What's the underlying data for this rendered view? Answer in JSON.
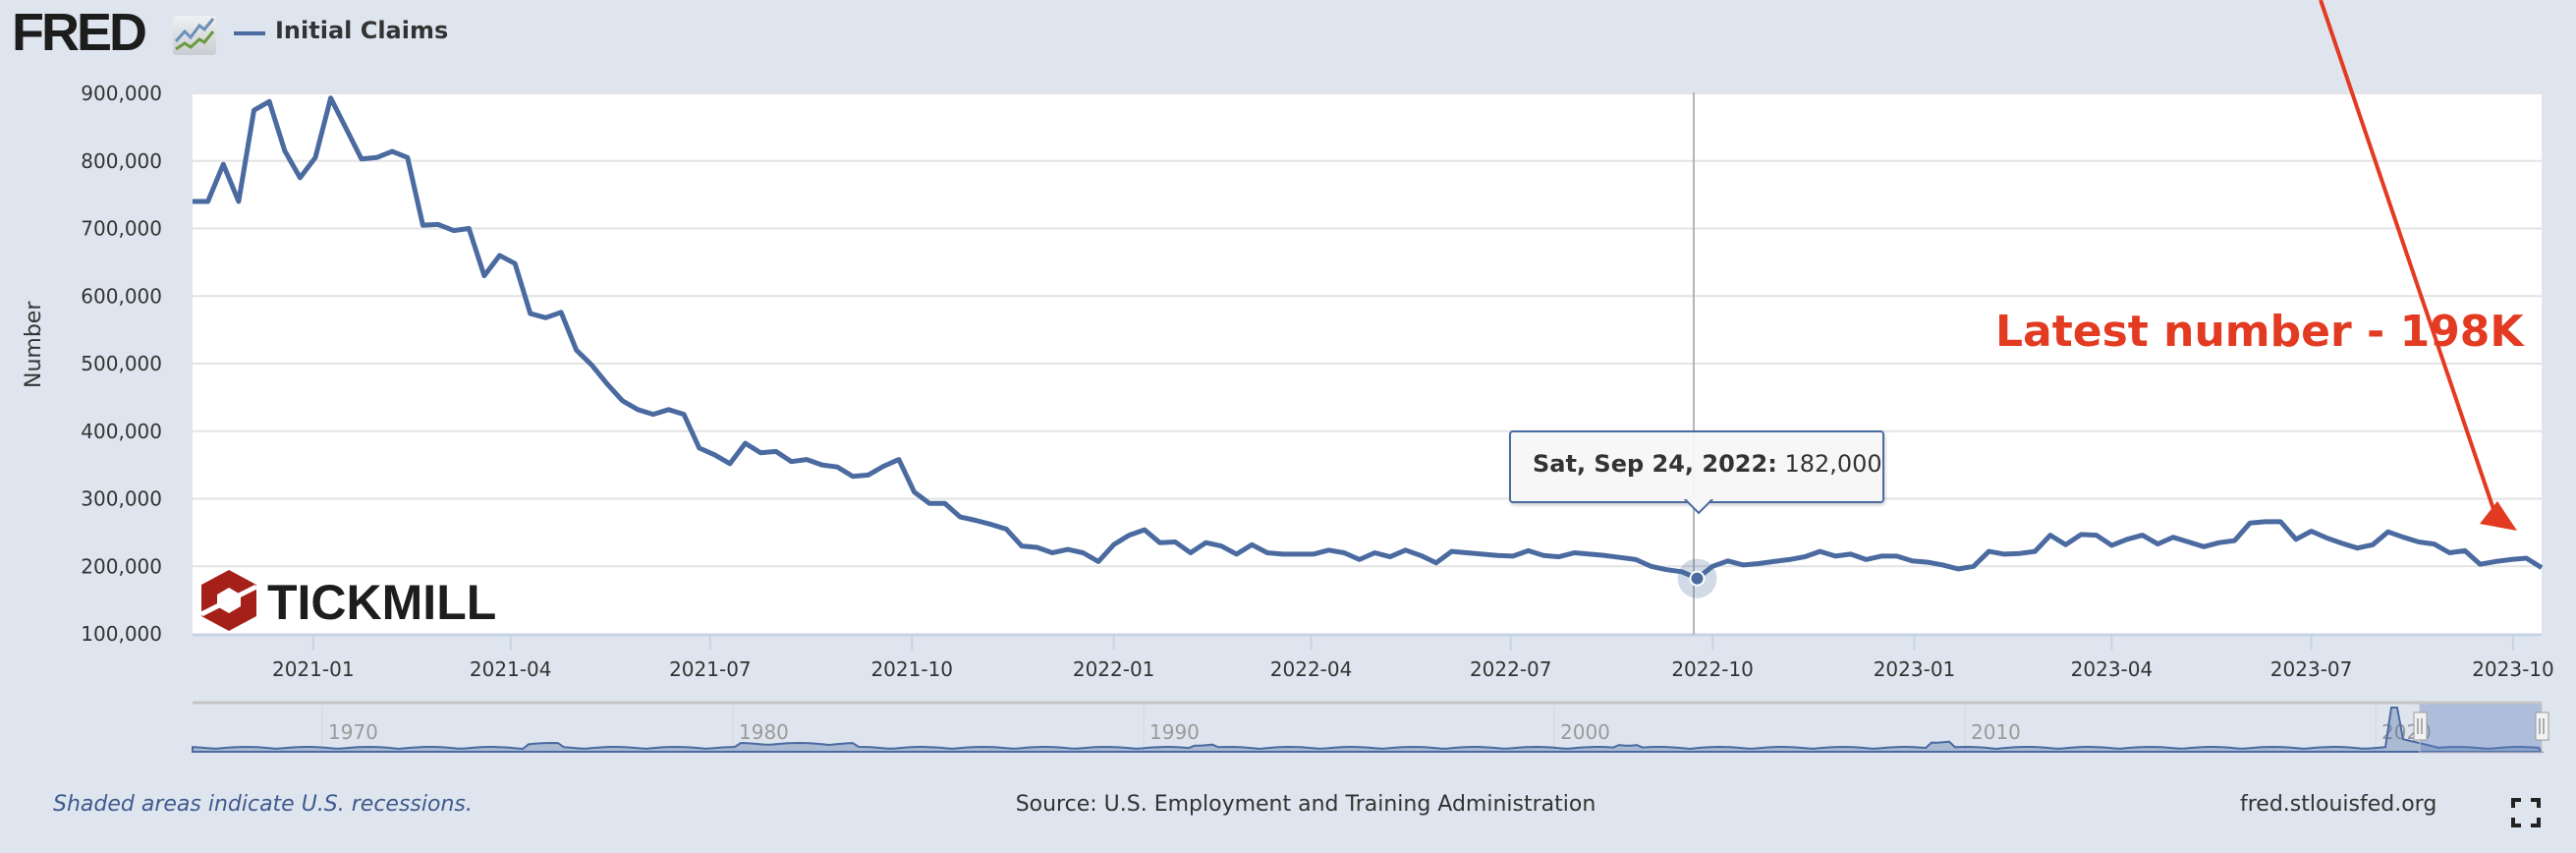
{
  "header": {
    "logo_text": "FRED",
    "series_label": "Initial Claims"
  },
  "colors": {
    "series": "#4a6aa0",
    "annotation": "#e33a22",
    "background": "#dfe5ee"
  },
  "tooltip": {
    "date": "Sat, Sep 24, 2022:",
    "value": "182,000",
    "x": "2022-09-24"
  },
  "annotation": {
    "text": "Latest number - 198K"
  },
  "watermark": {
    "text": "TICKMILL"
  },
  "navigator": {
    "labels": [
      "1970",
      "1980",
      "1990",
      "2000",
      "2010",
      "2020"
    ]
  },
  "footer": {
    "recession_note": "Shaded areas indicate U.S. recessions.",
    "source": "Source: U.S. Employment and Training Administration",
    "site": "fred.stlouisfed.org",
    "fullscreen_icon": "fullscreen-icon"
  },
  "chart_data": {
    "type": "line",
    "title": "",
    "xlabel": "",
    "ylabel": "Number",
    "ylim": [
      100000,
      900000
    ],
    "yticks": [
      100000,
      200000,
      300000,
      400000,
      500000,
      600000,
      700000,
      800000,
      900000
    ],
    "ytick_labels": [
      "100,000",
      "200,000",
      "300,000",
      "400,000",
      "500,000",
      "600,000",
      "700,000",
      "800,000",
      "900,000"
    ],
    "xlim": [
      "2020-11-07",
      "2023-10-14"
    ],
    "xticks": [
      "2021-01",
      "2021-04",
      "2021-07",
      "2021-10",
      "2022-01",
      "2022-04",
      "2022-07",
      "2022-10",
      "2023-01",
      "2023-04",
      "2023-07",
      "2023-10"
    ],
    "grid": true,
    "legend": "top-left",
    "series": [
      {
        "name": "Initial Claims",
        "x": [
          "2020-11-07",
          "2020-11-14",
          "2020-11-21",
          "2020-11-28",
          "2020-12-05",
          "2020-12-12",
          "2020-12-19",
          "2020-12-26",
          "2021-01-02",
          "2021-01-09",
          "2021-01-16",
          "2021-01-23",
          "2021-01-30",
          "2021-02-06",
          "2021-02-13",
          "2021-02-20",
          "2021-02-27",
          "2021-03-06",
          "2021-03-13",
          "2021-03-20",
          "2021-03-27",
          "2021-04-03",
          "2021-04-10",
          "2021-04-17",
          "2021-04-24",
          "2021-05-01",
          "2021-05-08",
          "2021-05-15",
          "2021-05-22",
          "2021-05-29",
          "2021-06-05",
          "2021-06-12",
          "2021-06-19",
          "2021-06-26",
          "2021-07-03",
          "2021-07-10",
          "2021-07-17",
          "2021-07-24",
          "2021-07-31",
          "2021-08-07",
          "2021-08-14",
          "2021-08-21",
          "2021-08-28",
          "2021-09-04",
          "2021-09-11",
          "2021-09-18",
          "2021-09-25",
          "2021-10-02",
          "2021-10-09",
          "2021-10-16",
          "2021-10-23",
          "2021-10-30",
          "2021-11-06",
          "2021-11-13",
          "2021-11-20",
          "2021-11-27",
          "2021-12-04",
          "2021-12-11",
          "2021-12-18",
          "2021-12-25",
          "2022-01-01",
          "2022-01-08",
          "2022-01-15",
          "2022-01-22",
          "2022-01-29",
          "2022-02-05",
          "2022-02-12",
          "2022-02-19",
          "2022-02-26",
          "2022-03-05",
          "2022-03-12",
          "2022-03-19",
          "2022-03-26",
          "2022-04-02",
          "2022-04-09",
          "2022-04-16",
          "2022-04-23",
          "2022-04-30",
          "2022-05-07",
          "2022-05-14",
          "2022-05-21",
          "2022-05-28",
          "2022-06-04",
          "2022-06-11",
          "2022-06-18",
          "2022-06-25",
          "2022-07-02",
          "2022-07-09",
          "2022-07-16",
          "2022-07-23",
          "2022-07-30",
          "2022-08-06",
          "2022-08-13",
          "2022-08-20",
          "2022-08-27",
          "2022-09-03",
          "2022-09-10",
          "2022-09-17",
          "2022-09-24",
          "2022-10-01",
          "2022-10-08",
          "2022-10-15",
          "2022-10-22",
          "2022-10-29",
          "2022-11-05",
          "2022-11-12",
          "2022-11-19",
          "2022-11-26",
          "2022-12-03",
          "2022-12-10",
          "2022-12-17",
          "2022-12-24",
          "2022-12-31",
          "2023-01-07",
          "2023-01-14",
          "2023-01-21",
          "2023-01-28",
          "2023-02-04",
          "2023-02-11",
          "2023-02-18",
          "2023-02-25",
          "2023-03-04",
          "2023-03-11",
          "2023-03-18",
          "2023-03-25",
          "2023-04-01",
          "2023-04-08",
          "2023-04-15",
          "2023-04-22",
          "2023-04-29",
          "2023-05-06",
          "2023-05-13",
          "2023-05-20",
          "2023-05-27",
          "2023-06-03",
          "2023-06-10",
          "2023-06-17",
          "2023-06-24",
          "2023-07-01",
          "2023-07-08",
          "2023-07-15",
          "2023-07-22",
          "2023-07-29",
          "2023-08-05",
          "2023-08-12",
          "2023-08-19",
          "2023-08-26",
          "2023-09-02",
          "2023-09-09",
          "2023-09-16",
          "2023-09-23",
          "2023-09-30",
          "2023-10-07",
          "2023-10-14"
        ],
        "values": [
          740000,
          740000,
          795000,
          740000,
          875000,
          888000,
          815000,
          775000,
          805000,
          893000,
          848000,
          803000,
          805000,
          814000,
          805000,
          705000,
          706000,
          697000,
          700000,
          630000,
          660000,
          648000,
          574000,
          568000,
          576000,
          520000,
          498000,
          470000,
          445000,
          432000,
          425000,
          432000,
          425000,
          375000,
          365000,
          352000,
          382000,
          368000,
          370000,
          355000,
          358000,
          350000,
          347000,
          333000,
          335000,
          348000,
          358000,
          310000,
          293000,
          293000,
          273000,
          268000,
          262000,
          255000,
          230000,
          228000,
          220000,
          225000,
          220000,
          207000,
          232000,
          246000,
          254000,
          235000,
          236000,
          220000,
          235000,
          230000,
          218000,
          232000,
          220000,
          218000,
          218000,
          218000,
          224000,
          220000,
          210000,
          220000,
          214000,
          224000,
          216000,
          205000,
          222000,
          220000,
          218000,
          216000,
          215000,
          223000,
          216000,
          214000,
          220000,
          218000,
          216000,
          213000,
          210000,
          200000,
          195000,
          192000,
          182000,
          200000,
          208000,
          202000,
          204000,
          207000,
          210000,
          214000,
          222000,
          215000,
          218000,
          210000,
          215000,
          215000,
          208000,
          206000,
          202000,
          196000,
          200000,
          222000,
          218000,
          219000,
          222000,
          246000,
          232000,
          247000,
          246000,
          231000,
          240000,
          246000,
          233000,
          243000,
          236000,
          229000,
          235000,
          238000,
          264000,
          266000,
          266000,
          240000,
          252000,
          242000,
          234000,
          227000,
          232000,
          251000,
          243000,
          236000,
          233000,
          220000,
          223000,
          203000,
          207000,
          210000,
          212000,
          198000
        ]
      }
    ]
  }
}
